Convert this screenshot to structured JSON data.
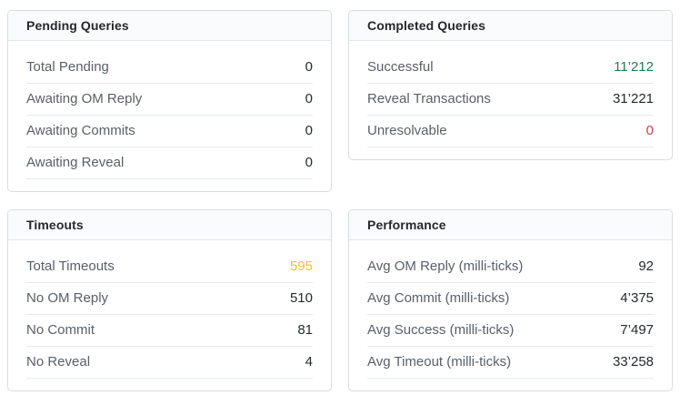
{
  "colors": {
    "success_green": "#1e7e4d",
    "danger_red": "#d63b4b",
    "warning_yellow": "#f5c028",
    "default_value": "#24292e",
    "label_gray": "#586069",
    "header_bg": "#fafbfc",
    "card_border": "#d9dcdf"
  },
  "cards": [
    {
      "title": "Pending Queries",
      "rows": [
        {
          "label": "Total Pending",
          "value": "0",
          "value_color": "#24292e"
        },
        {
          "label": "Awaiting OM Reply",
          "value": "0",
          "value_color": "#24292e"
        },
        {
          "label": "Awaiting Commits",
          "value": "0",
          "value_color": "#24292e"
        },
        {
          "label": "Awaiting Reveal",
          "value": "0",
          "value_color": "#24292e"
        }
      ]
    },
    {
      "title": "Completed Queries",
      "rows": [
        {
          "label": "Successful",
          "value": "11’212",
          "value_color": "#1e7e4d"
        },
        {
          "label": "Reveal Transactions",
          "value": "31’221",
          "value_color": "#24292e"
        },
        {
          "label": "Unresolvable",
          "value": "0",
          "value_color": "#d63b4b"
        }
      ]
    },
    {
      "title": "Timeouts",
      "rows": [
        {
          "label": "Total Timeouts",
          "value": "595",
          "value_color": "#f5c028"
        },
        {
          "label": "No OM Reply",
          "value": "510",
          "value_color": "#24292e"
        },
        {
          "label": "No Commit",
          "value": "81",
          "value_color": "#24292e"
        },
        {
          "label": "No Reveal",
          "value": "4",
          "value_color": "#24292e"
        }
      ]
    },
    {
      "title": "Performance",
      "rows": [
        {
          "label": "Avg OM Reply (milli-ticks)",
          "value": "92",
          "value_color": "#24292e"
        },
        {
          "label": "Avg Commit (milli-ticks)",
          "value": "4’375",
          "value_color": "#24292e"
        },
        {
          "label": "Avg Success (milli-ticks)",
          "value": "7’497",
          "value_color": "#24292e"
        },
        {
          "label": "Avg Timeout (milli-ticks)",
          "value": "33’258",
          "value_color": "#24292e"
        }
      ]
    }
  ]
}
